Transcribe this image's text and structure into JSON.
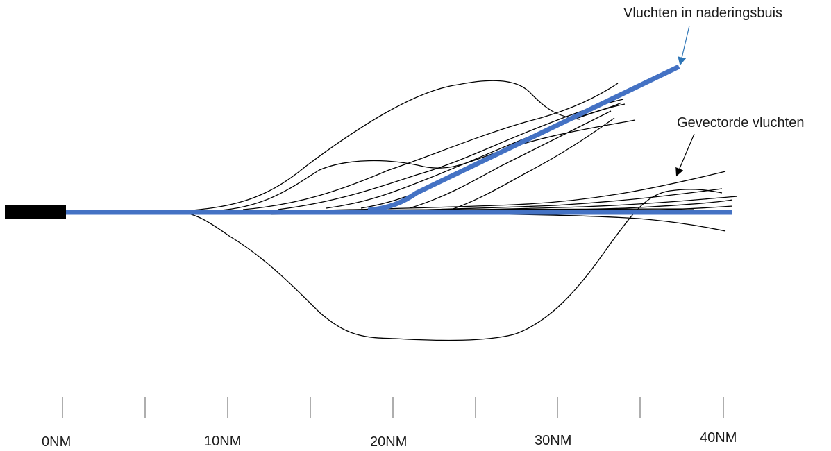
{
  "diagram": {
    "labels": {
      "approach_flights": "Vluchten in naderingsbuis",
      "vectored_flights": "Gevectorde vluchten"
    },
    "scale": {
      "tick_labels": [
        "0NM",
        "10NM",
        "20NM",
        "30NM",
        "40NM"
      ]
    },
    "colors": {
      "approach_tube": "#4472C4",
      "runway": "#000000",
      "flight_track": "#000000",
      "arrow_approach": "#2E75B6",
      "arrow_vectored": "#000000"
    }
  }
}
